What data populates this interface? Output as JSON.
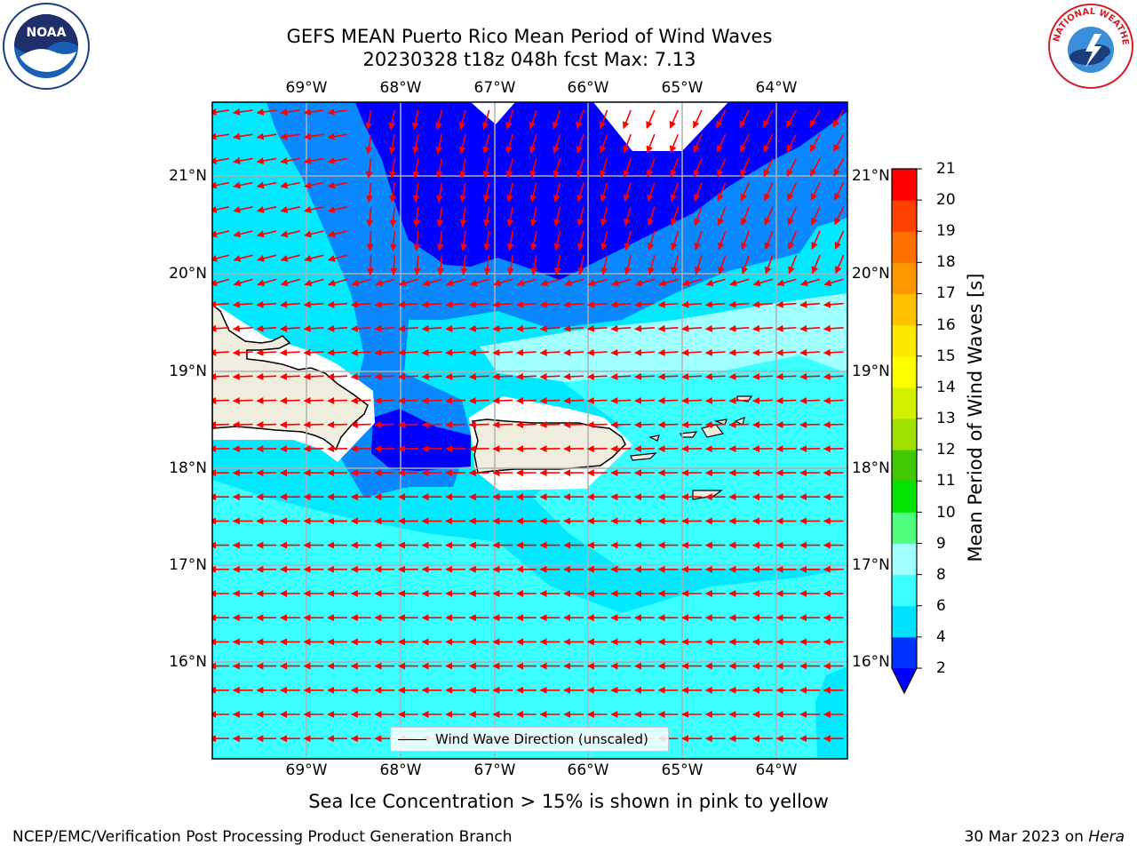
{
  "title_line1": "GEFS MEAN Puerto Rico Mean Period of Wind Waves",
  "title_line2": "20230328 t18z 048h fcst   Max: 7.13",
  "logos": {
    "left": "NOAA",
    "right": "NATIONAL WEATHER SERVICE"
  },
  "map": {
    "lon_ticks": [
      "69°W",
      "68°W",
      "67°W",
      "66°W",
      "65°W",
      "64°W"
    ],
    "lat_ticks": [
      "21°N",
      "20°N",
      "19°N",
      "18°N",
      "17°N",
      "16°N"
    ],
    "lon_range": [
      -70.0,
      -63.25
    ],
    "lat_range": [
      15.0,
      21.75
    ],
    "land_color": "#efedde",
    "arrow_color": "#ff0000",
    "legend_label": "Wind Wave Direction (unscaled)"
  },
  "colorbar": {
    "title": "Mean Period of Wind Waves [s]",
    "tick_labels": [
      "2",
      "4",
      "6",
      "8",
      "9",
      "10",
      "11",
      "12",
      "13",
      "14",
      "15",
      "16",
      "17",
      "18",
      "19",
      "20",
      "21"
    ],
    "colors": [
      "#0032ff",
      "#00e1ff",
      "#3cffff",
      "#a0ffff",
      "#50ff80",
      "#00e400",
      "#40c800",
      "#a0e000",
      "#d0f000",
      "#ffff00",
      "#ffe800",
      "#ffc000",
      "#ff9800",
      "#ff7000",
      "#ff4000",
      "#ff0000"
    ],
    "under_color": "#0000ff"
  },
  "footer_note": "Sea Ice Concentration > 15% is shown in pink to yellow",
  "credit_left": "NCEP/EMC/Verification Post Processing Product Generation Branch",
  "credit_right_date": "30 Mar 2023 on ",
  "credit_right_host": "Hera"
}
